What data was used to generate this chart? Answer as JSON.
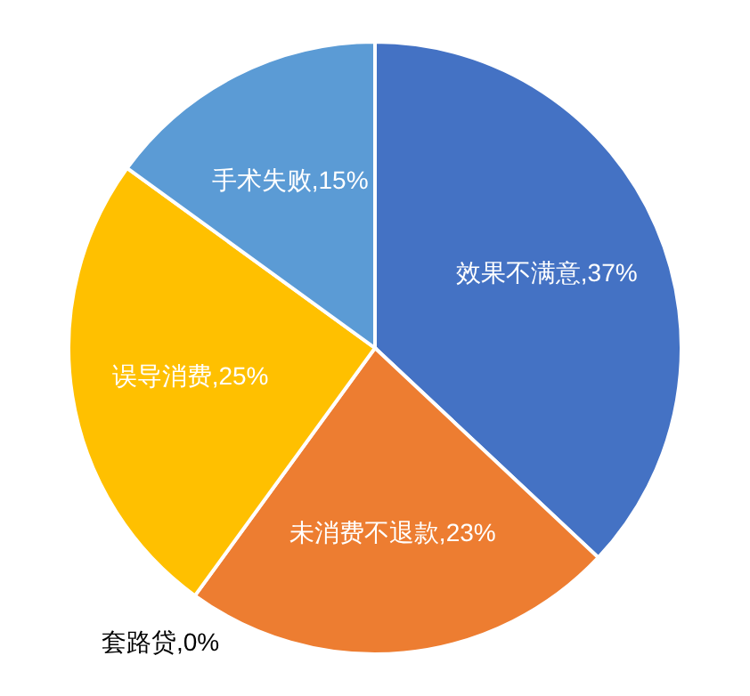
{
  "chart_data": {
    "type": "pie",
    "categories": [
      "效果不满意",
      "未消费不退款",
      "套路贷",
      "误导消费",
      "手术失败"
    ],
    "values": [
      37,
      23,
      0,
      25,
      15
    ],
    "colors": [
      "#4472c4",
      "#ed7d31",
      "#a5a5a5",
      "#ffc000",
      "#5b9bd5"
    ],
    "value_labels": [
      ",37%",
      ",23%",
      ",0%",
      ",25%",
      ",15%"
    ],
    "legend": false
  }
}
